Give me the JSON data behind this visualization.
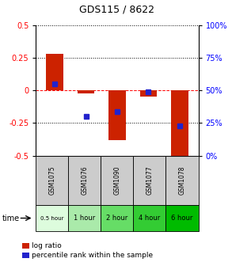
{
  "title": "GDS115 / 8622",
  "samples": [
    "GSM1075",
    "GSM1076",
    "GSM1090",
    "GSM1077",
    "GSM1078"
  ],
  "time_labels": [
    "0.5 hour",
    "1 hour",
    "2 hour",
    "4 hour",
    "6 hour"
  ],
  "time_colors": [
    "#ddfcdd",
    "#aaeaaa",
    "#66dd66",
    "#33cc33",
    "#00bb00"
  ],
  "log_ratios": [
    0.28,
    -0.02,
    -0.38,
    -0.05,
    -0.5
  ],
  "percentile_ranks": [
    0.55,
    0.3,
    0.34,
    0.49,
    0.23
  ],
  "ylim": [
    -0.5,
    0.5
  ],
  "yticks_left": [
    -0.5,
    -0.25,
    0.0,
    0.25,
    0.5
  ],
  "ytick_labels_left": [
    "-0.5",
    "-0.25",
    "0",
    "0.25",
    "0.5"
  ],
  "yticks_right": [
    0,
    25,
    50,
    75,
    100
  ],
  "bar_color": "#cc2200",
  "dot_color": "#2222cc",
  "legend_log_ratio": "log ratio",
  "legend_percentile": "percentile rank within the sample",
  "time_row_label": "time"
}
